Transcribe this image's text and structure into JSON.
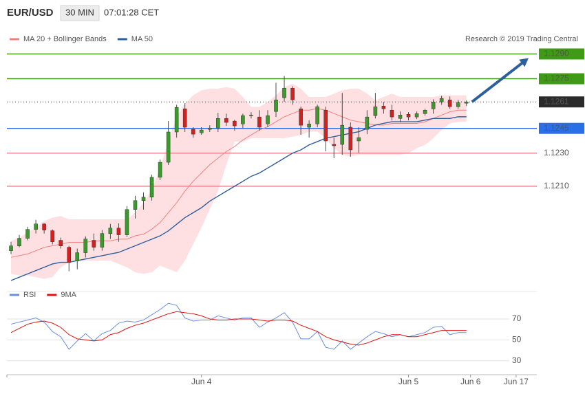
{
  "header": {
    "symbol": "EUR/USD",
    "interval": "30 MIN",
    "time": "07:01:28 CET"
  },
  "credit": "Research © 2019 Trading Central",
  "chart_data": [
    {
      "type": "candlestick",
      "x": [
        0,
        1,
        2,
        3,
        4,
        5,
        6,
        7,
        8,
        9,
        10,
        11,
        12,
        13,
        14,
        15,
        16,
        17,
        18,
        19,
        20,
        21,
        22,
        23,
        24,
        25,
        26,
        27,
        28,
        29,
        30,
        31,
        32,
        33,
        34,
        35,
        36,
        37,
        38,
        39,
        40,
        41,
        42,
        43,
        44,
        45,
        46,
        47,
        48,
        49,
        50,
        51,
        52,
        53,
        54,
        55
      ],
      "xlim": [
        -0.5,
        63.5
      ],
      "ylim": [
        1.1148,
        1.1306
      ],
      "up_color": "#3c9a2c",
      "down_color": "#d61f1f",
      "open": [
        1.1171,
        1.11739,
        1.11785,
        1.11839,
        1.11872,
        1.11831,
        1.11773,
        1.11731,
        1.11648,
        1.11698,
        1.11773,
        1.11731,
        1.11814,
        1.11847,
        1.11806,
        1.11959,
        1.12013,
        1.12034,
        1.12154,
        1.12245,
        1.12428,
        1.12568,
        1.12444,
        1.12423,
        1.12444,
        1.12452,
        1.1251,
        1.12494,
        1.12477,
        1.12527,
        1.12519,
        1.12477,
        1.12552,
        1.12635,
        1.12693,
        1.12568,
        1.12457,
        1.12477,
        1.1256,
        1.12353,
        1.12353,
        1.12457,
        1.12374,
        1.12444,
        1.12527,
        1.12585,
        1.1256,
        1.1251,
        1.12535,
        1.12519,
        1.12539,
        1.12568,
        1.1261,
        1.12622,
        1.12581,
        1.12602
      ],
      "high": [
        1.11764,
        1.11806,
        1.11855,
        1.11897,
        1.11876,
        1.11839,
        1.11789,
        1.11739,
        1.11723,
        1.11797,
        1.11814,
        1.11835,
        1.11872,
        1.11876,
        1.1198,
        1.12042,
        1.12063,
        1.1217,
        1.12262,
        1.12494,
        1.12593,
        1.12602,
        1.12457,
        1.12457,
        1.12469,
        1.12544,
        1.12539,
        1.12502,
        1.12539,
        1.12548,
        1.1256,
        1.1256,
        1.12726,
        1.12767,
        1.12705,
        1.12581,
        1.12498,
        1.12593,
        1.12581,
        1.12394,
        1.12664,
        1.12486,
        1.12457,
        1.1256,
        1.12664,
        1.1261,
        1.12593,
        1.12552,
        1.12548,
        1.12552,
        1.12568,
        1.12626,
        1.12647,
        1.12643,
        1.12622,
        1.12618
      ],
      "low": [
        1.1169,
        1.11731,
        1.11773,
        1.11814,
        1.11814,
        1.11748,
        1.11723,
        1.11586,
        1.11598,
        1.11669,
        1.1171,
        1.1171,
        1.11781,
        1.11764,
        1.11793,
        1.11905,
        1.11959,
        1.12013,
        1.12137,
        1.12229,
        1.12394,
        1.12428,
        1.12394,
        1.12411,
        1.12428,
        1.12428,
        1.12465,
        1.12436,
        1.12452,
        1.1251,
        1.12436,
        1.12457,
        1.12519,
        1.1261,
        1.12593,
        1.12411,
        1.12394,
        1.12457,
        1.12311,
        1.1227,
        1.12291,
        1.12278,
        1.12303,
        1.12415,
        1.1251,
        1.12539,
        1.12498,
        1.12486,
        1.12498,
        1.12506,
        1.12527,
        1.12539,
        1.12593,
        1.12568,
        1.12568,
        1.12585
      ],
      "close": [
        1.11739,
        1.11785,
        1.11839,
        1.11872,
        1.11835,
        1.11764,
        1.11739,
        1.1164,
        1.11698,
        1.11781,
        1.11731,
        1.11814,
        1.11847,
        1.11806,
        1.11959,
        1.12013,
        1.12034,
        1.12154,
        1.12245,
        1.12428,
        1.12577,
        1.12457,
        1.12415,
        1.1244,
        1.12452,
        1.1251,
        1.12486,
        1.12465,
        1.12527,
        1.12531,
        1.12457,
        1.12527,
        1.12622,
        1.12693,
        1.12622,
        1.12469,
        1.12477,
        1.12581,
        1.12374,
        1.12345,
        1.12469,
        1.1232,
        1.12394,
        1.12519,
        1.12581,
        1.12568,
        1.12519,
        1.12531,
        1.12519,
        1.12539,
        1.1256,
        1.1261,
        1.12631,
        1.12581,
        1.12606,
        1.1261
      ],
      "overlays": [
        {
          "name": "MA 20 + Bollinger Bands",
          "color": "#f08080",
          "band_color": "#ffd6d8",
          "values": [
            1.1167,
            1.1168,
            1.1169,
            1.1171,
            1.1173,
            1.1174,
            1.1175,
            1.1176,
            1.1176,
            1.1176,
            1.1177,
            1.1177,
            1.1177,
            1.1178,
            1.1178,
            1.118,
            1.1181,
            1.1184,
            1.1188,
            1.1194,
            1.12,
            1.1207,
            1.1213,
            1.1218,
            1.1223,
            1.1227,
            1.1231,
            1.1234,
            1.1238,
            1.1241,
            1.1244,
            1.1246,
            1.1249,
            1.1252,
            1.1254,
            1.1256,
            1.1256,
            1.1257,
            1.1256,
            1.1254,
            1.1252,
            1.125,
            1.1249,
            1.1248,
            1.1247,
            1.1247,
            1.1248,
            1.1248,
            1.1248,
            1.1248,
            1.1249,
            1.1251,
            1.1253,
            1.1255,
            1.1256,
            1.1256
          ],
          "upper": [
            1.1177,
            1.1179,
            1.1182,
            1.1185,
            1.1189,
            1.1191,
            1.1192,
            1.119,
            1.119,
            1.119,
            1.119,
            1.119,
            1.119,
            1.119,
            1.119,
            1.1194,
            1.12,
            1.1208,
            1.1221,
            1.1237,
            1.1252,
            1.126,
            1.1265,
            1.1268,
            1.1269,
            1.1269,
            1.127,
            1.1269,
            1.1264,
            1.1258,
            1.1258,
            1.1261,
            1.1265,
            1.127,
            1.1272,
            1.1269,
            1.1264,
            1.1264,
            1.1264,
            1.1266,
            1.1268,
            1.1269,
            1.1269,
            1.1266,
            1.1262,
            1.1264,
            1.1266,
            1.1264,
            1.1264,
            1.1264,
            1.1264,
            1.1264,
            1.1265,
            1.1265,
            1.1265,
            1.1265
          ],
          "lower": [
            1.1157,
            1.1156,
            1.1156,
            1.1155,
            1.1154,
            1.1155,
            1.1161,
            1.1164,
            1.1165,
            1.1165,
            1.1165,
            1.1165,
            1.1165,
            1.1163,
            1.1161,
            1.1158,
            1.1157,
            1.1158,
            1.1162,
            1.116,
            1.1158,
            1.1165,
            1.1175,
            1.1185,
            1.1196,
            1.1207,
            1.1223,
            1.1237,
            1.1237,
            1.1239,
            1.1239,
            1.1239,
            1.1239,
            1.1239,
            1.124,
            1.1241,
            1.1243,
            1.1243,
            1.1239,
            1.1233,
            1.1229,
            1.1228,
            1.1229,
            1.1229,
            1.1229,
            1.1229,
            1.1229,
            1.1229,
            1.123,
            1.1233,
            1.1235,
            1.1239,
            1.1244,
            1.1248,
            1.1249,
            1.1249
          ]
        },
        {
          "name": "MA 50",
          "color": "#2d5d9a",
          "values": [
            1.1153,
            1.1155,
            1.1157,
            1.1159,
            1.1161,
            1.1163,
            1.1164,
            1.1164,
            1.1165,
            1.1166,
            1.1167,
            1.1168,
            1.1169,
            1.117,
            1.1172,
            1.1174,
            1.1176,
            1.1178,
            1.118,
            1.1183,
            1.1187,
            1.1191,
            1.1194,
            1.1197,
            1.1201,
            1.1204,
            1.1207,
            1.121,
            1.1213,
            1.1216,
            1.1218,
            1.1221,
            1.1224,
            1.1227,
            1.123,
            1.1232,
            1.1235,
            1.1237,
            1.1239,
            1.124,
            1.1241,
            1.1242,
            1.1243,
            1.1245,
            1.1247,
            1.1248,
            1.1249,
            1.1249,
            1.1249,
            1.1249,
            1.125,
            1.1251,
            1.1251,
            1.1251,
            1.1252,
            1.1252
          ]
        }
      ],
      "levels": [
        {
          "value": 1.129,
          "label": "1.1290",
          "color": "#3f9b16",
          "box": true
        },
        {
          "value": 1.1275,
          "label": "1.1275",
          "color": "#3f9b16",
          "box": true
        },
        {
          "value": 1.1261,
          "label": "1.1261",
          "color": "#2b2b2b",
          "box": true,
          "dotted": true
        },
        {
          "value": 1.1245,
          "label": "1.1245",
          "color": "#2a6ee8",
          "box": true
        },
        {
          "value": 1.123,
          "label": "1.1230",
          "color": "#e88a8e",
          "box": false
        },
        {
          "value": 1.121,
          "label": "1.1210",
          "color": "#e88a8e",
          "box": false
        }
      ],
      "arrow_color": "#2b5f9e"
    },
    {
      "type": "line",
      "x": [
        0,
        1,
        2,
        3,
        4,
        5,
        6,
        7,
        8,
        9,
        10,
        11,
        12,
        13,
        14,
        15,
        16,
        17,
        18,
        19,
        20,
        21,
        22,
        23,
        24,
        25,
        26,
        27,
        28,
        29,
        30,
        31,
        32,
        33,
        34,
        35,
        36,
        37,
        38,
        39,
        40,
        41,
        42,
        43,
        44,
        45,
        46,
        47,
        48,
        49,
        50,
        51,
        52,
        53,
        54,
        55
      ],
      "xlim": [
        -0.5,
        63.5
      ],
      "xticks": [
        {
          "value": 23,
          "label": "Jun 4"
        },
        {
          "value": 48,
          "label": "Jun 5"
        },
        {
          "value": 55.5,
          "label": "Jun 6"
        },
        {
          "value": 61,
          "label": "Jun 17"
        }
      ],
      "ylim": [
        20,
        91
      ],
      "yticks": [
        30,
        50,
        70
      ],
      "grid": true,
      "series": [
        {
          "name": "RSI",
          "color": "#6a8fe0",
          "values": [
            65,
            67,
            69,
            71,
            67,
            58,
            53,
            41,
            49,
            56,
            49,
            56,
            59,
            66,
            68,
            67,
            69,
            74,
            79,
            85,
            83,
            71,
            68,
            69,
            69,
            73,
            71,
            69,
            71,
            71,
            62,
            67,
            71,
            76,
            67,
            51,
            51,
            58,
            43,
            41,
            49,
            41,
            47,
            53,
            58,
            56,
            53,
            55,
            53,
            55,
            57,
            62,
            63,
            55,
            57,
            57
          ]
        },
        {
          "name": "9MA",
          "color": "#e01010",
          "values": [
            57,
            61,
            65,
            67,
            68,
            66,
            62,
            55,
            51,
            50,
            49,
            50,
            55,
            57,
            61,
            64,
            66,
            69,
            72,
            75,
            77,
            76,
            75,
            73,
            70,
            69,
            69,
            70,
            70,
            70,
            69,
            68,
            69,
            69,
            68,
            64,
            61,
            58,
            53,
            50,
            48,
            46,
            45,
            47,
            50,
            53,
            55,
            55,
            53,
            53,
            55,
            57,
            59,
            59,
            59,
            59
          ]
        }
      ]
    }
  ]
}
